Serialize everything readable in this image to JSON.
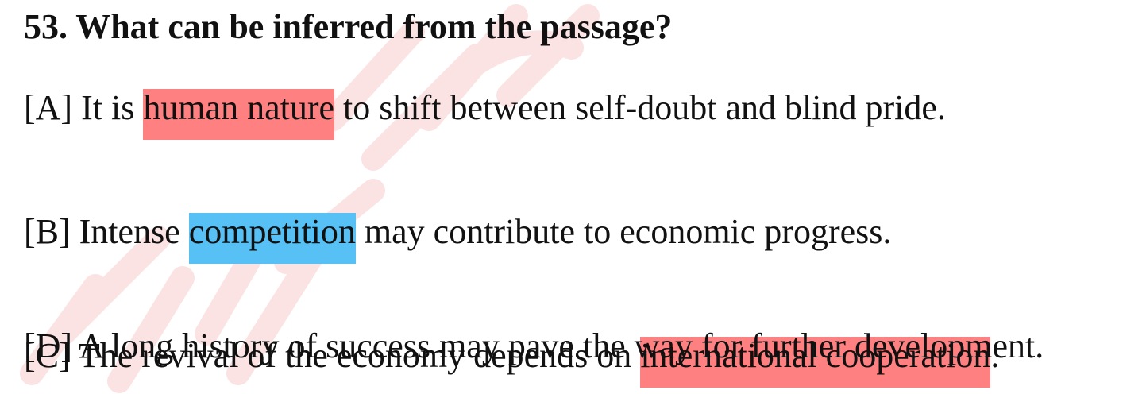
{
  "question": {
    "text": "53. What can be inferred from the passage?"
  },
  "options": [
    {
      "marker": "[A]",
      "before": " It is ",
      "highlight": "human nature",
      "highlight_color": "#ff8080",
      "after": " to shift between self-doubt and blind pride."
    },
    {
      "marker": "[B]",
      "before": " Intense ",
      "highlight": "competition",
      "highlight_color": "#57c0f5",
      "after": " may contribute to economic progress."
    },
    {
      "marker": "[C]",
      "before": " The revival of the economy depends on ",
      "highlight": "international cooperation",
      "highlight_color": "#ff8080",
      "after": "."
    },
    {
      "marker": "[D]",
      "text": " A long history of success may pave the way for further development."
    }
  ]
}
